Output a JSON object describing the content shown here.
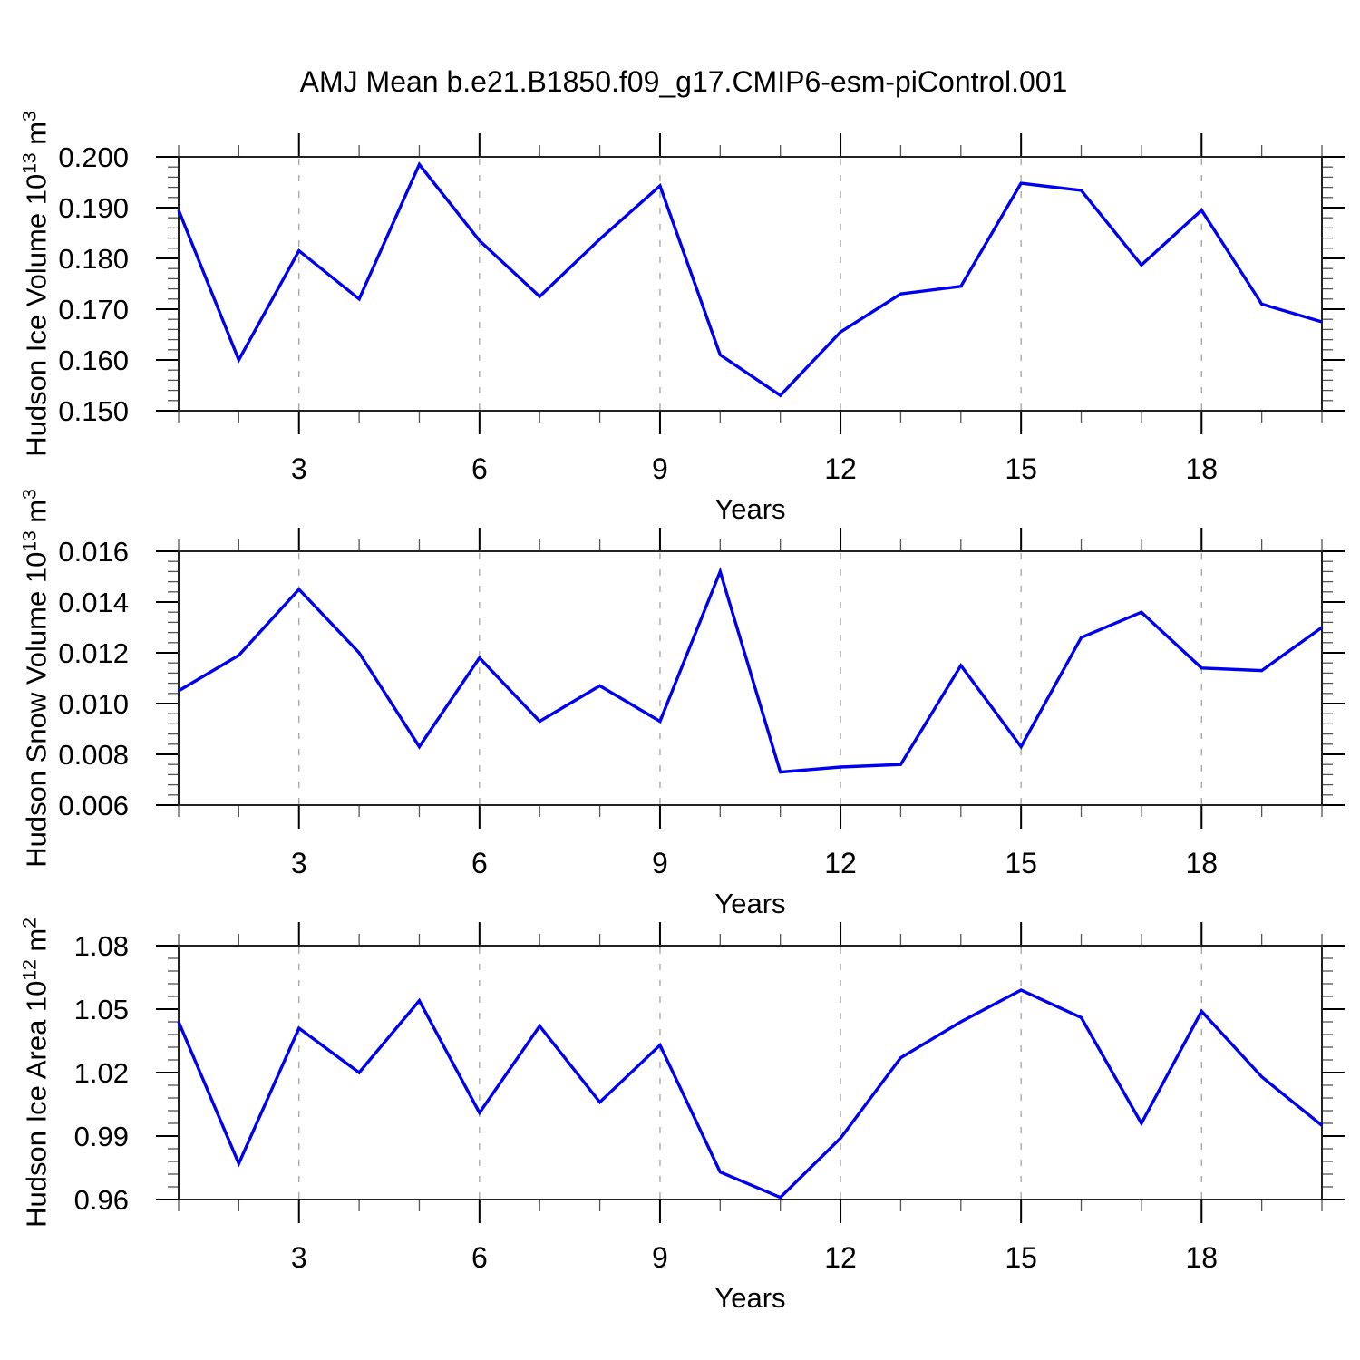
{
  "title": "AMJ Mean b.e21.B1850.f09_g17.CMIP6-esm-piControl.001",
  "colors": {
    "line": "#0000f0",
    "frame": "#222222",
    "major_tick": "#000000",
    "minor_tick": "#555555",
    "grid": "#a3a3a3",
    "text": "#000000"
  },
  "x_axis": {
    "label": "Years",
    "range": [
      1,
      20
    ],
    "major_ticks": [
      3,
      6,
      9,
      12,
      15,
      18
    ],
    "major_tick_labels": [
      "3",
      "6",
      "9",
      "12",
      "15",
      "18"
    ],
    "minor_tick_step": 1,
    "grid": "dashed-at-major-ticks"
  },
  "chart_data": [
    {
      "type": "line",
      "panel": "hudson-ice-volume",
      "ylabel": {
        "pre": "Hudson Ice Volume 10",
        "sup1": "13",
        "mid": " m",
        "sup2": "3"
      },
      "ylim": [
        0.15,
        0.2
      ],
      "y_tick_values": [
        0.15,
        0.16,
        0.17,
        0.18,
        0.19,
        0.2
      ],
      "y_tick_labels": [
        "0.150",
        "0.160",
        "0.170",
        "0.180",
        "0.190",
        "0.200"
      ],
      "y_minor_step": 0.002,
      "x": [
        1,
        2,
        3,
        4,
        5,
        6,
        7,
        8,
        9,
        10,
        11,
        12,
        13,
        14,
        15,
        16,
        17,
        18,
        19,
        20
      ],
      "values": [
        0.1895,
        0.16,
        0.1815,
        0.172,
        0.1985,
        0.1835,
        0.1725,
        0.1838,
        0.1943,
        0.161,
        0.153,
        0.1655,
        0.173,
        0.1745,
        0.1948,
        0.1934,
        0.1787,
        0.1895,
        0.171,
        0.1675
      ]
    },
    {
      "type": "line",
      "panel": "hudson-snow-volume",
      "ylabel": {
        "pre": "Hudson Snow Volume 10",
        "sup1": "13",
        "mid": " m",
        "sup2": "3"
      },
      "ylim": [
        0.006,
        0.016
      ],
      "y_tick_values": [
        0.006,
        0.008,
        0.01,
        0.012,
        0.014,
        0.016
      ],
      "y_tick_labels": [
        "0.006",
        "0.008",
        "0.010",
        "0.012",
        "0.014",
        "0.016"
      ],
      "y_minor_step": 0.0004,
      "x": [
        1,
        2,
        3,
        4,
        5,
        6,
        7,
        8,
        9,
        10,
        11,
        12,
        13,
        14,
        15,
        16,
        17,
        18,
        19,
        20
      ],
      "values": [
        0.0105,
        0.0119,
        0.0145,
        0.012,
        0.0083,
        0.0118,
        0.0093,
        0.0107,
        0.0093,
        0.0152,
        0.0073,
        0.0075,
        0.0076,
        0.0115,
        0.0083,
        0.0126,
        0.0136,
        0.0114,
        0.0113,
        0.013
      ]
    },
    {
      "type": "line",
      "panel": "hudson-ice-area",
      "ylabel": {
        "pre": "Hudson Ice Area 10",
        "sup1": "12",
        "mid": " m",
        "sup2": "2"
      },
      "ylim": [
        0.96,
        1.08
      ],
      "y_tick_values": [
        0.96,
        0.99,
        1.02,
        1.05,
        1.08
      ],
      "y_tick_labels": [
        "0.96",
        "0.99",
        "1.02",
        "1.05",
        "1.08"
      ],
      "y_minor_step": 0.006,
      "x": [
        1,
        2,
        3,
        4,
        5,
        6,
        7,
        8,
        9,
        10,
        11,
        12,
        13,
        14,
        15,
        16,
        17,
        18,
        19,
        20
      ],
      "values": [
        1.044,
        0.977,
        1.041,
        1.02,
        1.054,
        1.001,
        1.042,
        1.006,
        1.033,
        0.973,
        0.961,
        0.989,
        1.027,
        1.044,
        1.059,
        1.046,
        0.996,
        1.049,
        1.018,
        0.995
      ]
    }
  ]
}
